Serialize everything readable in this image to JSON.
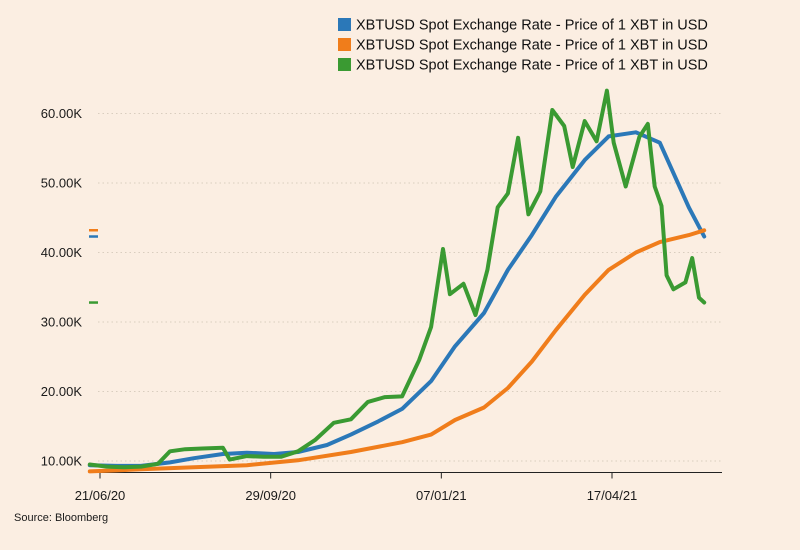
{
  "chart_data": {
    "type": "line",
    "source": "Source: Bloomberg",
    "x_range": [
      "2020-06-15",
      "2021-06-10"
    ],
    "x_ticks": [
      {
        "date": "2020-06-21",
        "label": "21/06/20"
      },
      {
        "date": "2020-09-29",
        "label": "29/09/20"
      },
      {
        "date": "2021-01-07",
        "label": "07/01/21"
      },
      {
        "date": "2021-04-17",
        "label": "17/04/21"
      }
    ],
    "ylim": [
      8000,
      63000
    ],
    "y_ticks": [
      {
        "value": 10000,
        "label": "10.00K"
      },
      {
        "value": 20000,
        "label": "20.00K"
      },
      {
        "value": 30000,
        "label": "30.00K"
      },
      {
        "value": 40000,
        "label": "40.00K"
      },
      {
        "value": 50000,
        "label": "50.00K"
      },
      {
        "value": 60000,
        "label": "60.00K"
      }
    ],
    "grid": "horizontal dotted",
    "legend_placement": "top-right",
    "series": [
      {
        "name": "XBTUSD Spot Exchange Rate - Price of 1 XBT in USD",
        "color": "#2b78b8",
        "points": [
          [
            "2020-06-15",
            9400
          ],
          [
            "2020-07-01",
            9300
          ],
          [
            "2020-07-15",
            9300
          ],
          [
            "2020-08-01",
            9800
          ],
          [
            "2020-08-15",
            10400
          ],
          [
            "2020-09-01",
            11000
          ],
          [
            "2020-09-15",
            11200
          ],
          [
            "2020-10-01",
            11000
          ],
          [
            "2020-10-15",
            11300
          ],
          [
            "2020-11-01",
            12300
          ],
          [
            "2020-11-15",
            13800
          ],
          [
            "2020-12-01",
            15700
          ],
          [
            "2020-12-15",
            17500
          ],
          [
            "2021-01-01",
            21500
          ],
          [
            "2021-01-15",
            26500
          ],
          [
            "2021-02-01",
            31300
          ],
          [
            "2021-02-15",
            37500
          ],
          [
            "2021-03-01",
            42500
          ],
          [
            "2021-03-15",
            48000
          ],
          [
            "2021-04-01",
            53300
          ],
          [
            "2021-04-15",
            56700
          ],
          [
            "2021-05-01",
            57300
          ],
          [
            "2021-05-15",
            55800
          ],
          [
            "2021-06-01",
            46500
          ],
          [
            "2021-06-10",
            42300
          ]
        ]
      },
      {
        "name": "XBTUSD Spot Exchange Rate - Price of 1 XBT in USD",
        "color": "#f07d1b",
        "points": [
          [
            "2020-06-15",
            8500
          ],
          [
            "2020-07-15",
            8800
          ],
          [
            "2020-08-15",
            9100
          ],
          [
            "2020-09-15",
            9400
          ],
          [
            "2020-10-15",
            10100
          ],
          [
            "2020-11-15",
            11300
          ],
          [
            "2020-12-15",
            12700
          ],
          [
            "2021-01-01",
            13800
          ],
          [
            "2021-01-15",
            15900
          ],
          [
            "2021-02-01",
            17700
          ],
          [
            "2021-02-15",
            20500
          ],
          [
            "2021-03-01",
            24300
          ],
          [
            "2021-03-15",
            28800
          ],
          [
            "2021-04-01",
            33900
          ],
          [
            "2021-04-15",
            37500
          ],
          [
            "2021-05-01",
            40000
          ],
          [
            "2021-05-15",
            41500
          ],
          [
            "2021-06-01",
            42500
          ],
          [
            "2021-06-10",
            43200
          ]
        ]
      },
      {
        "name": "XBTUSD Spot Exchange Rate - Price of 1 XBT in USD",
        "color": "#3a9a32",
        "points": [
          [
            "2020-06-15",
            9500
          ],
          [
            "2020-06-25",
            9200
          ],
          [
            "2020-07-05",
            9100
          ],
          [
            "2020-07-15",
            9200
          ],
          [
            "2020-07-25",
            9600
          ],
          [
            "2020-08-01",
            11400
          ],
          [
            "2020-08-10",
            11700
          ],
          [
            "2020-08-20",
            11800
          ],
          [
            "2020-09-01",
            11900
          ],
          [
            "2020-09-05",
            10200
          ],
          [
            "2020-09-15",
            10700
          ],
          [
            "2020-09-25",
            10600
          ],
          [
            "2020-10-05",
            10600
          ],
          [
            "2020-10-15",
            11400
          ],
          [
            "2020-10-25",
            13000
          ],
          [
            "2020-11-05",
            15500
          ],
          [
            "2020-11-15",
            16000
          ],
          [
            "2020-11-25",
            18500
          ],
          [
            "2020-12-05",
            19200
          ],
          [
            "2020-12-15",
            19300
          ],
          [
            "2020-12-25",
            24500
          ],
          [
            "2021-01-01",
            29300
          ],
          [
            "2021-01-08",
            40500
          ],
          [
            "2021-01-12",
            34000
          ],
          [
            "2021-01-20",
            35500
          ],
          [
            "2021-01-27",
            31000
          ],
          [
            "2021-02-03",
            37500
          ],
          [
            "2021-02-09",
            46500
          ],
          [
            "2021-02-15",
            48500
          ],
          [
            "2021-02-21",
            56500
          ],
          [
            "2021-02-27",
            45500
          ],
          [
            "2021-03-06",
            48800
          ],
          [
            "2021-03-13",
            60500
          ],
          [
            "2021-03-20",
            58200
          ],
          [
            "2021-03-25",
            52300
          ],
          [
            "2021-04-01",
            58900
          ],
          [
            "2021-04-08",
            56000
          ],
          [
            "2021-04-14",
            63300
          ],
          [
            "2021-04-18",
            55800
          ],
          [
            "2021-04-25",
            49500
          ],
          [
            "2021-05-03",
            56600
          ],
          [
            "2021-05-08",
            58500
          ],
          [
            "2021-05-12",
            49500
          ],
          [
            "2021-05-16",
            46700
          ],
          [
            "2021-05-19",
            36700
          ],
          [
            "2021-05-23",
            34700
          ],
          [
            "2021-05-30",
            35700
          ],
          [
            "2021-06-03",
            39200
          ],
          [
            "2021-06-07",
            33500
          ],
          [
            "2021-06-10",
            32800
          ]
        ]
      }
    ]
  }
}
